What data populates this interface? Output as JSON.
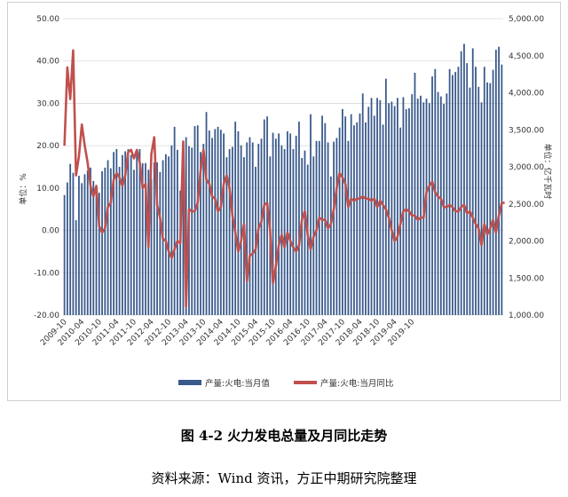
{
  "chart_data": {
    "type": "bar+line",
    "left_axis": {
      "label": "单位：%",
      "ticks": [
        "50.00",
        "40.00",
        "30.00",
        "20.00",
        "10.00",
        "0.00",
        "-10.00",
        "-20.00"
      ],
      "range": [
        -20,
        50
      ]
    },
    "right_axis": {
      "label": "单位：亿千瓦时",
      "ticks": [
        "5,000.00",
        "4,500.00",
        "4,000.00",
        "3,500.00",
        "3,000.00",
        "2,500.00",
        "2,000.00",
        "1,500.00",
        "1,000.00"
      ],
      "range": [
        1000,
        5000
      ]
    },
    "x_tick_labels": [
      "2009-10",
      "2010-04",
      "2010-10",
      "2011-04",
      "2011-10",
      "2012-04",
      "2012-10",
      "2013-04",
      "2013-10",
      "2014-04",
      "2014-10",
      "2015-04",
      "2015-10",
      "2016-04",
      "2016-10",
      "2017-04",
      "2017-10",
      "2018-04",
      "2018-10",
      "2019-04",
      "2019-10"
    ],
    "grid": true,
    "legend_position": "bottom",
    "series": [
      {
        "name": "产量:火电:当月值",
        "axis": "right",
        "kind": "bar",
        "color": "#3a5a8c",
        "values": [
          2620,
          2790,
          3040,
          2920,
          2280,
          2880,
          2780,
          2900,
          2950,
          2990,
          2810,
          2700,
          2650,
          2940,
          2990,
          3090,
          2980,
          3200,
          3240,
          3000,
          3160,
          3210,
          3240,
          3160,
          2960,
          3180,
          3240,
          3050,
          3050,
          2960,
          2840,
          3060,
          3060,
          2930,
          3090,
          3170,
          3140,
          3290,
          3540,
          3230,
          2680,
          3320,
          3400,
          3280,
          3260,
          3550,
          3560,
          3200,
          3310,
          3740,
          3490,
          3390,
          3510,
          3540,
          3500,
          3450,
          3130,
          3240,
          3270,
          3610,
          3480,
          3290,
          3130,
          3330,
          3400,
          3330,
          3000,
          3310,
          3380,
          3640,
          3680,
          3140,
          3460,
          3380,
          3450,
          3290,
          3240,
          3480,
          3450,
          3240,
          3420,
          3610,
          3120,
          3220,
          3030,
          3710,
          3140,
          3350,
          3350,
          3690,
          3590,
          3330,
          2870,
          3340,
          3390,
          3530,
          3780,
          3680,
          3350,
          3710,
          3560,
          3600,
          3720,
          3990,
          3600,
          3810,
          3930,
          3690,
          3930,
          3900,
          3570,
          4190,
          3860,
          3880,
          3820,
          3930,
          3530,
          3940,
          3780,
          3790,
          3980,
          4270,
          3920,
          3960,
          3870,
          3920,
          3860,
          4220,
          4320,
          4010,
          3950,
          3850,
          3990,
          4320,
          4240,
          4280,
          4350,
          4560,
          4660,
          4400,
          4070,
          4600,
          4350,
          4080,
          3870,
          4350,
          4140,
          4130,
          4310,
          4580,
          4620,
          4380
        ]
      },
      {
        "name": "产量:火电:当月同比",
        "axis": "left",
        "kind": "line",
        "color": "#c0504d",
        "values": [
          20.0,
          38.5,
          31.0,
          42.5,
          13.0,
          17.5,
          25.0,
          20.0,
          16.0,
          10.5,
          8.0,
          10.5,
          1.0,
          -0.5,
          0.5,
          5.5,
          6.5,
          12.0,
          13.5,
          12.5,
          10.5,
          13.0,
          18.5,
          19.0,
          17.0,
          19.0,
          16.0,
          10.0,
          11.0,
          -4.0,
          18.0,
          22.0,
          6.0,
          3.0,
          -2.0,
          -2.5,
          -5.0,
          -6.5,
          -4.5,
          -2.5,
          -3.0,
          21.0,
          -18.0,
          5.0,
          4.5,
          4.5,
          6.5,
          14.0,
          19.0,
          12.0,
          11.0,
          8.0,
          7.5,
          4.5,
          5.5,
          11.0,
          13.0,
          10.0,
          3.5,
          -0.5,
          -5.0,
          -2.5,
          1.5,
          -12.0,
          -6.0,
          -5.5,
          -4.5,
          0.5,
          2.0,
          6.0,
          6.5,
          0.0,
          -12.5,
          -8.5,
          -3.5,
          -1.0,
          -4.0,
          -0.5,
          -2.5,
          -4.0,
          -5.0,
          -3.5,
          2.5,
          4.5,
          -1.0,
          -4.5,
          -1.5,
          0.0,
          3.0,
          2.5,
          2.5,
          0.5,
          1.5,
          5.0,
          10.0,
          13.5,
          12.5,
          11.0,
          5.5,
          7.5,
          7.0,
          7.5,
          7.5,
          8.0,
          7.5,
          7.5,
          7.0,
          7.5,
          5.5,
          7.0,
          6.0,
          5.0,
          3.0,
          0.0,
          -2.5,
          -1.5,
          1.5,
          4.5,
          5.0,
          4.5,
          3.5,
          3.5,
          2.5,
          3.0,
          3.0,
          9.0,
          10.5,
          11.5,
          9.0,
          8.0,
          7.5,
          5.5,
          5.5,
          6.0,
          5.5,
          4.5,
          4.5,
          5.5,
          6.0,
          4.0,
          4.5,
          3.0,
          1.5,
          0.5,
          -3.5,
          1.5,
          -1.0,
          0.5,
          2.5,
          -0.5,
          3.5,
          6.5,
          6.5
        ]
      }
    ]
  },
  "legend": {
    "bar_label": "产量:火电:当月值",
    "line_label": "产量:火电:当月同比"
  },
  "caption": "图 4-2  火力发电总量及月同比走势",
  "source": "资料来源：Wind 资讯，方正中期研究院整理"
}
